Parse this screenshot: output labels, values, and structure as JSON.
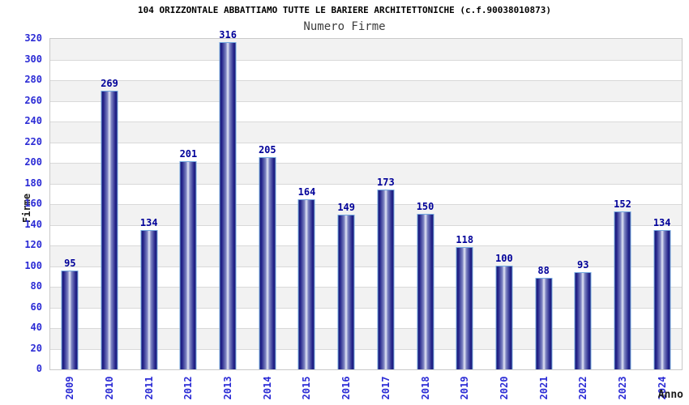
{
  "header": {
    "title": "104 ORIZZONTALE ABBATTIAMO TUTTE LE BARIERE ARCHITETTONICHE (c.f.90038010873)",
    "subtitle": "Numero Firme"
  },
  "chart_data": {
    "type": "bar",
    "title": "Numero Firme",
    "categories": [
      "2009",
      "2010",
      "2011",
      "2012",
      "2013",
      "2014",
      "2015",
      "2016",
      "2017",
      "2018",
      "2019",
      "2020",
      "2021",
      "2022",
      "2023",
      "2024"
    ],
    "values": [
      95,
      269,
      134,
      201,
      316,
      205,
      164,
      149,
      173,
      150,
      118,
      100,
      88,
      93,
      152,
      134
    ],
    "xlabel": "Anno",
    "ylabel": "Firme",
    "ylim": [
      0,
      320
    ],
    "y_ticks": [
      0,
      20,
      40,
      60,
      80,
      100,
      120,
      140,
      160,
      180,
      200,
      220,
      240,
      260,
      280,
      300,
      320
    ],
    "grid": "horizontal alternating bands, gridlines every 20",
    "legend_position": "none"
  },
  "colors": {
    "title_text": "#000000",
    "subtitle_text": "#3d3d3d",
    "axis_tick_blue": "#2b2bd5",
    "value_label_navy": "#000099",
    "bar_edge_navy": "#191977",
    "bar_center_highlight": "#e4e7f6",
    "bar_outline_lightblue": "#74a9e0",
    "band_gray": "#f2f2f2",
    "gridline": "#d9d9d9",
    "plot_border": "#c9c9c9",
    "axis_title_dark": "#1a1a1a"
  }
}
